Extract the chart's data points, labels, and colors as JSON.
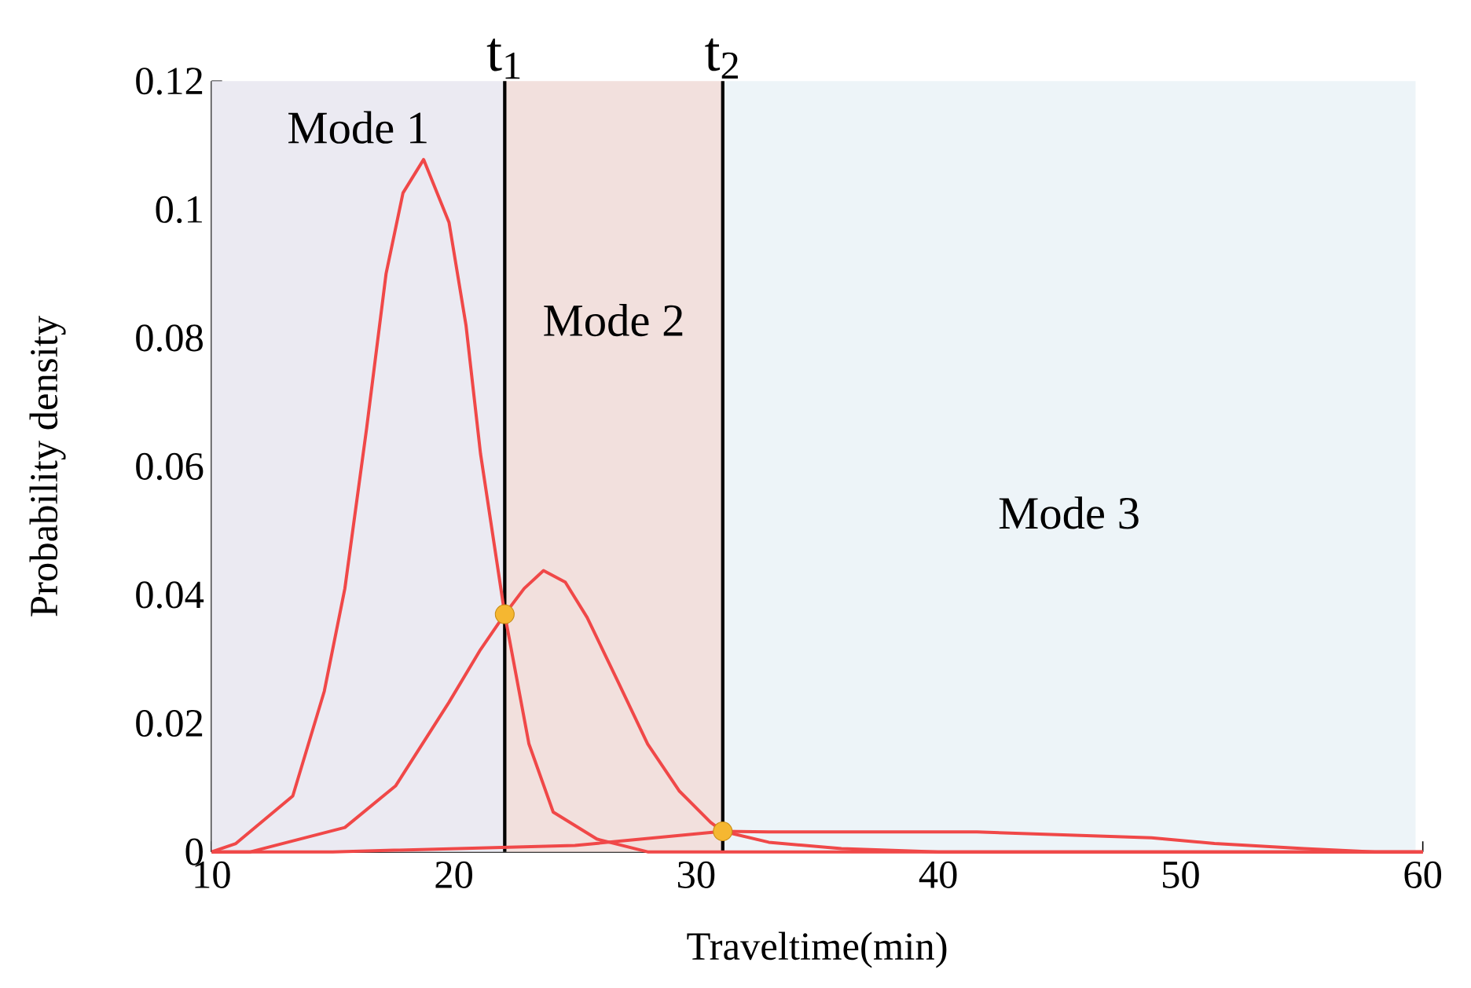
{
  "chart_data": {
    "type": "line",
    "xlabel": "Traveltime(min)",
    "ylabel": "Probability density",
    "xlim": [
      10,
      60
    ],
    "ylim": [
      0,
      0.12
    ],
    "xticks": [
      10,
      20,
      30,
      40,
      50,
      60
    ],
    "yticks": [
      0,
      0.02,
      0.04,
      0.06,
      0.08,
      0.1,
      0.12
    ],
    "grid": false,
    "line_style": "solid",
    "marker": "none",
    "series": [
      {
        "color": "#f04848",
        "x": [
          10,
          11.0,
          13.35,
          14.65,
          15.5,
          16.4,
          17.2,
          17.9,
          18.75,
          19.8,
          20.5,
          21.1,
          22.1,
          23.1,
          24.1,
          25.9,
          28,
          60
        ],
        "values": [
          0,
          0.0013,
          0.0087,
          0.025,
          0.041,
          0.066,
          0.09,
          0.1026,
          0.1078,
          0.098,
          0.082,
          0.062,
          0.037,
          0.0168,
          0.0062,
          0.002,
          0,
          0
        ]
      },
      {
        "color": "#f04848",
        "x": [
          10,
          11.6,
          15.5,
          17.6,
          19.8,
          21.1,
          22.1,
          22.9,
          23.7,
          24.6,
          25.5,
          26.75,
          28.0,
          29.3,
          30.6,
          31.1,
          33,
          36,
          40,
          60
        ],
        "values": [
          0,
          0,
          0.0038,
          0.0103,
          0.0233,
          0.0315,
          0.037,
          0.041,
          0.0438,
          0.042,
          0.0365,
          0.0267,
          0.0168,
          0.0095,
          0.0046,
          0.0032,
          0.0015,
          0.0005,
          0,
          0
        ]
      },
      {
        "color": "#f04848",
        "x": [
          10,
          15,
          25,
          31.1,
          33.0,
          41.6,
          48.8,
          51.4,
          55.1,
          58,
          60
        ],
        "values": [
          0,
          0,
          0.001,
          0.0032,
          0.0031,
          0.0031,
          0.0022,
          0.0013,
          0.0005,
          0,
          0
        ]
      },
      {
        "type": "scatter",
        "marker": "circle",
        "color": "#f5b731",
        "x": [
          22.1,
          31.1
        ],
        "values": [
          0.037,
          0.0032
        ]
      }
    ],
    "ref_lines": [
      {
        "axis": "x",
        "value": 22.1,
        "label": "t$_{1}$",
        "color": "#000000"
      },
      {
        "axis": "x",
        "value": 31.1,
        "label": "t$_{2}$",
        "color": "#000000"
      }
    ],
    "bands": [
      {
        "axis": "x",
        "from": 10,
        "to": 22.1,
        "label": "Mode 1",
        "color": "#ebeaf2"
      },
      {
        "axis": "x",
        "from": 22.1,
        "to": 31.1,
        "label": "Mode 2",
        "color": "#f2e0dd"
      },
      {
        "axis": "x",
        "from": 31.1,
        "to": 59.7,
        "label": "Mode 3",
        "color": "#edf4f8"
      }
    ]
  }
}
